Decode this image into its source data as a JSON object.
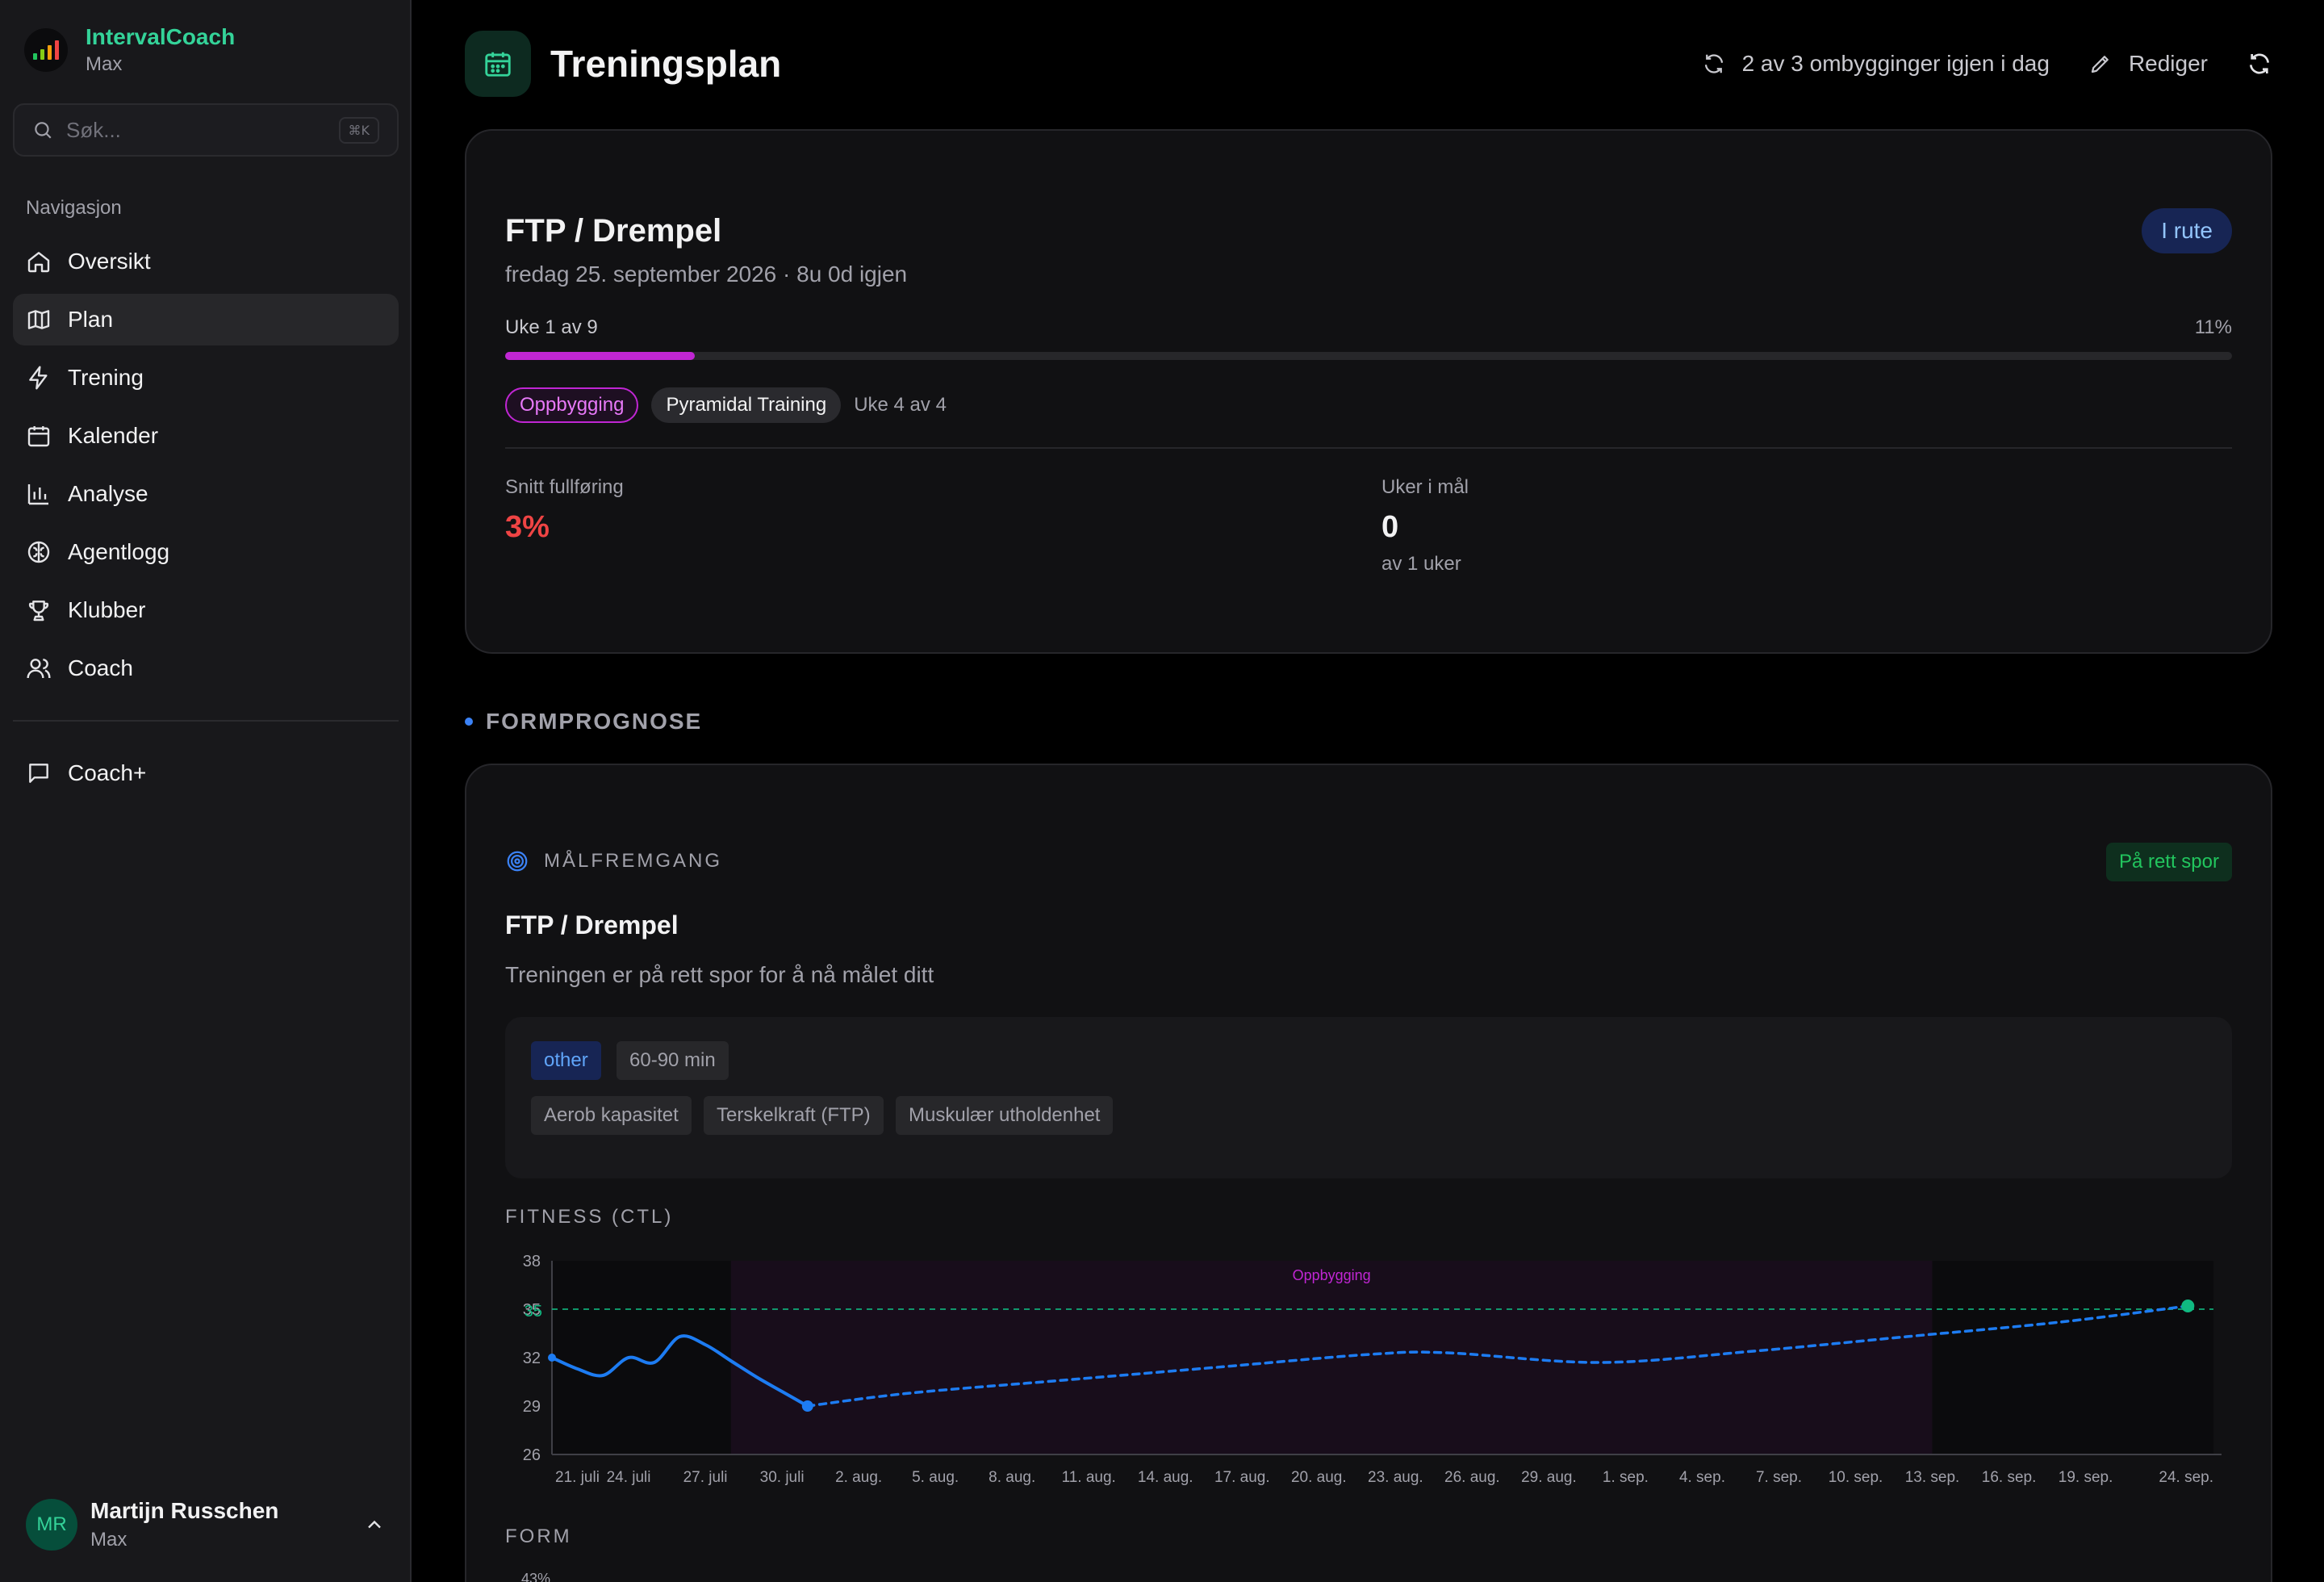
{
  "app": {
    "name": "IntervalCoach",
    "plan": "Max"
  },
  "search": {
    "placeholder": "Søk...",
    "shortcut": "⌘K"
  },
  "sidebar": {
    "section_title": "Navigasjon",
    "items": [
      {
        "label": "Oversikt",
        "icon": "home-icon"
      },
      {
        "label": "Plan",
        "icon": "map-icon",
        "active": true
      },
      {
        "label": "Trening",
        "icon": "lightning-icon"
      },
      {
        "label": "Kalender",
        "icon": "calendar-icon"
      },
      {
        "label": "Analyse",
        "icon": "bar-chart-icon"
      },
      {
        "label": "Agentlogg",
        "icon": "brain-icon"
      },
      {
        "label": "Klubber",
        "icon": "trophy-icon"
      },
      {
        "label": "Coach",
        "icon": "users-icon"
      }
    ],
    "secondary": [
      {
        "label": "Coach+",
        "icon": "chat-icon"
      }
    ]
  },
  "user": {
    "initials": "MR",
    "name": "Martijn Russchen",
    "plan": "Max"
  },
  "header": {
    "title": "Treningsplan",
    "rebuilds": "2 av 3 ombygginger igjen i dag",
    "edit_label": "Rediger"
  },
  "goal_card": {
    "title": "FTP / Drempel",
    "subtitle": "fredag 25. september 2026 · 8u 0d igjen",
    "status_badge": "I rute",
    "week_label": "Uke 1 av 9",
    "progress_text": "11%",
    "progress_value": 0.11,
    "phase_chip": "Oppbygging",
    "block_chip": "Pyramidal Training",
    "block_week": "Uke 4 av 4",
    "stats": [
      {
        "label": "Snitt fullføring",
        "value": "3%",
        "sub": ""
      },
      {
        "label": "Uker i mål",
        "value": "0",
        "sub": "av 1 uker"
      }
    ]
  },
  "forecast": {
    "section_title": "FORMPROGNOSE",
    "progress_header": "MÅLFREMGANG",
    "status_badge": "På rett spor",
    "goal_title": "FTP / Drempel",
    "description": "Treningen er på rett spor for å nå målet ditt",
    "tags_row1": [
      "other",
      "60-90 min"
    ],
    "tags_row2": [
      "Aerob kapasitet",
      "Terskelkraft (FTP)",
      "Muskulær utholdenhet"
    ],
    "fitness_label": "FITNESS (CTL)",
    "form_label": "FORM",
    "form_first_tick": "43%"
  },
  "chart_data": {
    "type": "line",
    "title": "FITNESS (CTL)",
    "xlabel": "",
    "ylabel": "",
    "ylim": [
      26,
      38
    ],
    "yticks": [
      26,
      29,
      32,
      35,
      38
    ],
    "xticks": [
      "21. juli",
      "24. juli",
      "27. juli",
      "30. juli",
      "2. aug.",
      "5. aug.",
      "8. aug.",
      "11. aug.",
      "14. aug.",
      "17. aug.",
      "20. aug.",
      "23. aug.",
      "26. aug.",
      "29. aug.",
      "1. sep.",
      "4. sep.",
      "7. sep.",
      "10. sep.",
      "13. sep.",
      "16. sep.",
      "19. sep.",
      "24. sep."
    ],
    "target": {
      "value": 35,
      "label": "35",
      "color": "#10b981"
    },
    "phase_band": {
      "label": "Oppbygging",
      "from": "28. juli",
      "to": "13. sep.",
      "color": "#c026d3"
    },
    "series": [
      {
        "style": "solid",
        "color": "#1d7cf2",
        "points": [
          [
            "21. juli",
            32.0
          ],
          [
            "22. juli",
            31.3
          ],
          [
            "23. juli",
            30.9
          ],
          [
            "24. juli",
            32.0
          ],
          [
            "25. juli",
            31.7
          ],
          [
            "26. juli",
            33.3
          ],
          [
            "27. juli",
            32.8
          ],
          [
            "28. juli",
            31.8
          ],
          [
            "29. juli",
            30.8
          ],
          [
            "30. juli",
            29.9
          ],
          [
            "31. juli",
            29.0
          ]
        ]
      },
      {
        "style": "dashed",
        "color": "#1d7cf2",
        "points": [
          [
            "31. juli",
            29.0
          ],
          [
            "4. aug.",
            29.8
          ],
          [
            "10. aug.",
            30.6
          ],
          [
            "16. aug.",
            31.4
          ],
          [
            "22. aug.",
            32.2
          ],
          [
            "25. aug.",
            32.3
          ],
          [
            "31. aug.",
            31.7
          ],
          [
            "6. sep.",
            32.4
          ],
          [
            "12. sep.",
            33.3
          ],
          [
            "18. sep.",
            34.2
          ],
          [
            "23. sep.",
            35.2
          ]
        ]
      }
    ],
    "endpoint": {
      "x": "23. sep.",
      "y": 35.2,
      "color": "#10b981"
    }
  }
}
